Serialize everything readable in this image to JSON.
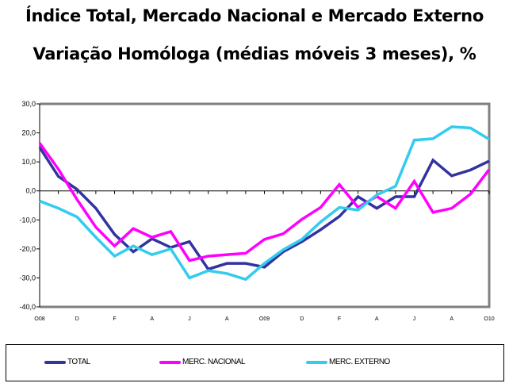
{
  "title": "Índice Total, Mercado Nacional e Mercado Externo",
  "subtitle": "Variação Homóloga (médias móveis 3 meses), %",
  "chart_data": {
    "type": "line",
    "title": "Índice Total, Mercado Nacional e Mercado Externo",
    "subtitle": "Variação Homóloga (médias móveis 3 meses), %",
    "ylim": [
      -40,
      30
    ],
    "yticks": [
      "30,0",
      "20,0",
      "10,0",
      "0,0",
      "-10,0",
      "-20,0",
      "-30,0",
      "-40,0"
    ],
    "ytick_values": [
      30,
      20,
      10,
      0,
      -10,
      -20,
      -30,
      -40
    ],
    "xtick_labels": [
      "O08",
      "D",
      "F",
      "A",
      "J",
      "A",
      "O09",
      "D",
      "F",
      "A",
      "J",
      "A",
      "O10"
    ],
    "legend_position": "bottom",
    "grid": false,
    "series": [
      {
        "name": "TOTAL",
        "color": "#3333A0",
        "values": [
          15,
          5,
          0.5,
          -6,
          -15,
          -21,
          -16.5,
          -19.5,
          -17.5,
          -27,
          -25,
          -25,
          -26.3,
          -21,
          -17.5,
          -13.4,
          -8.8,
          -2,
          -6,
          -2,
          -2,
          10.6,
          5.2,
          7.2,
          10.3
        ]
      },
      {
        "name": "MERC. NACIONAL",
        "color": "#FF00FF",
        "values": [
          16.5,
          7.5,
          -3,
          -12.5,
          -19,
          -13,
          -16,
          -14,
          -24,
          -22.5,
          -22,
          -21.5,
          -16.7,
          -14.8,
          -9.8,
          -5.7,
          2.2,
          -5.7,
          -1.9,
          -6,
          3.3,
          -7.4,
          -6,
          -1.1,
          7.4
        ]
      },
      {
        "name": "MERC. EXTERNO",
        "color": "#33CCEE",
        "values": [
          -3.5,
          -6,
          -9,
          -16,
          -22.5,
          -19,
          -22,
          -20,
          -30,
          -27.5,
          -28.5,
          -30.5,
          -25,
          -20.3,
          -16.7,
          -10.7,
          -5.7,
          -6.6,
          -1.4,
          1.6,
          17.5,
          18,
          22.1,
          21.7,
          17.8
        ]
      }
    ]
  }
}
